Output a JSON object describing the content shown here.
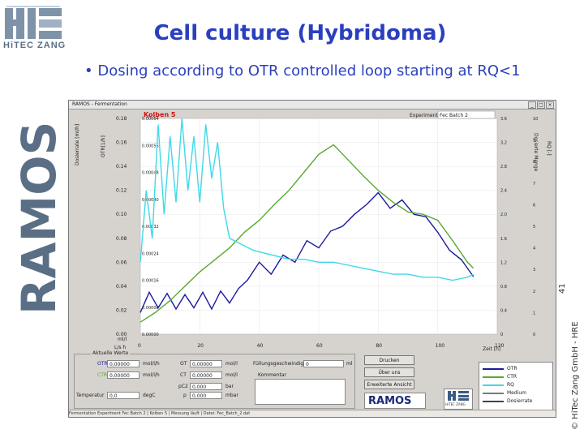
{
  "slide": {
    "logo_text": "HiTEC ZANG",
    "title": "Cell culture (Hybridoma)",
    "bullet": "• Dosing according to OTR controlled loop starting at RQ<1",
    "vertical_logo": "RAMOS",
    "slide_number": "41",
    "copyright": "© HiTec Zang GmbH - HRE"
  },
  "app": {
    "window_title": "RAMOS - Fermentation",
    "flask_label": "Kolben 5",
    "experiment_label": "Experiment:",
    "experiment_value": "Fec Batch 2",
    "y_left_title": "OTR[1/h]",
    "y_left2_title": "Dosierrate [ml/h]",
    "y_right_title": "RQ [-]",
    "y_right2_title": "Dosierte Menge",
    "x_title": "Zeit [h]",
    "x_unit_left": "ml/l",
    "x_unit_left2": "L/s h",
    "buttons": {
      "print": "Drucken",
      "about": "Über uns",
      "extended": "Erweiterte Ansicht"
    },
    "panel_caption": "Aktuelle Werte",
    "current": {
      "otr_label": "OTR",
      "otr_value": "0,00000",
      "otr_unit": "mol/l/h",
      "ctr_label": "CTR",
      "ctr_value": "0,00000",
      "ctr_unit": "mol/l/h",
      "temp_label": "Temperatur",
      "temp_value": "0,0",
      "temp_unit": "degC",
      "ot_label": "OT",
      "ot_value": "0,00000",
      "ot_unit": "mol/l",
      "ct_label": "CT",
      "ct_value": "0,00000",
      "ct_unit": "mol/l",
      "pc_label": "pC2",
      "pc_value": "0,000",
      "pc_unit": "bar",
      "p_label": "p",
      "p_value": "0,000",
      "p_unit": "mbar",
      "flow_label": "Füllungsgeschwindigkeit",
      "flow_value": "0",
      "flow_unit": "ml",
      "comment_label": "Kommentar"
    },
    "legend": [
      {
        "name": "OTR",
        "color": "#1a1aa0"
      },
      {
        "name": "CTR",
        "color": "#5aa832"
      },
      {
        "name": "RQ",
        "color": "#40d8e8"
      },
      {
        "name": "Medium",
        "color": "#7a7a7a"
      },
      {
        "name": "Dosierrate",
        "color": "#444444"
      }
    ],
    "ramos_mini": "RAMOS",
    "hitec_mini": "HiTEC ZANG",
    "status": "Fermentation Experiment Fec Batch 2 | Kolben 5 | Messung läuft | Datei: Fec_Batch_2.dat"
  },
  "chart_data": {
    "type": "line",
    "xlabel": "Zeit [h]",
    "xlim": [
      0,
      120
    ],
    "x_ticks": [
      "0",
      "20",
      "40",
      "60",
      "80",
      "100",
      "120"
    ],
    "ylim_left": [
      0,
      0.18
    ],
    "y_ticks_left": [
      "0.00",
      "0.02",
      "0.04",
      "0.06",
      "0.08",
      "0.10",
      "0.12",
      "0.14",
      "0.16",
      "0.18"
    ],
    "y_ticks_left2": [
      "0.00000",
      "0.00008",
      "0.00016",
      "0.00024",
      "0.00032",
      "0.00040",
      "0.00048",
      "0.00056",
      "0.00064"
    ],
    "y_ticks_right": [
      "0",
      "0.4",
      "0.8",
      "1.2",
      "1.6",
      "2.0",
      "2.4",
      "2.8",
      "3.2",
      "3.6"
    ],
    "y_ticks_right2": [
      "0",
      "1",
      "2",
      "3",
      "4",
      "5",
      "6",
      "7",
      "8",
      "9",
      "10"
    ],
    "series": [
      {
        "name": "OTR",
        "color": "#1a1aa0",
        "x": [
          0,
          3,
          6,
          9,
          12,
          15,
          18,
          21,
          24,
          27,
          30,
          33,
          36,
          40,
          44,
          48,
          52,
          56,
          60,
          64,
          68,
          72,
          76,
          80,
          84,
          88,
          92,
          96,
          100,
          104,
          108,
          112
        ],
        "y": [
          0.018,
          0.035,
          0.022,
          0.034,
          0.021,
          0.033,
          0.022,
          0.035,
          0.021,
          0.036,
          0.026,
          0.038,
          0.045,
          0.06,
          0.05,
          0.066,
          0.06,
          0.078,
          0.072,
          0.086,
          0.09,
          0.1,
          0.108,
          0.118,
          0.105,
          0.112,
          0.1,
          0.098,
          0.085,
          0.07,
          0.062,
          0.048
        ]
      },
      {
        "name": "CTR",
        "color": "#5aa832",
        "x": [
          0,
          5,
          10,
          15,
          20,
          25,
          30,
          35,
          40,
          45,
          50,
          55,
          60,
          65,
          70,
          75,
          80,
          85,
          90,
          95,
          100,
          105,
          110,
          112
        ],
        "y": [
          0.01,
          0.018,
          0.028,
          0.04,
          0.052,
          0.062,
          0.072,
          0.085,
          0.095,
          0.108,
          0.12,
          0.135,
          0.15,
          0.158,
          0.145,
          0.132,
          0.12,
          0.11,
          0.102,
          0.1,
          0.095,
          0.078,
          0.06,
          0.055
        ]
      },
      {
        "name": "RQ",
        "color": "#40d8e8",
        "x": [
          0,
          2,
          4,
          6,
          8,
          10,
          12,
          14,
          16,
          18,
          20,
          22,
          24,
          26,
          28,
          30,
          34,
          38,
          42,
          46,
          50,
          55,
          60,
          65,
          70,
          75,
          80,
          85,
          90,
          95,
          100,
          105,
          110,
          112
        ],
        "y": [
          1.2,
          2.4,
          1.6,
          3.5,
          2.0,
          3.3,
          2.2,
          3.6,
          2.4,
          3.3,
          2.2,
          3.5,
          2.6,
          3.2,
          2.1,
          1.6,
          1.5,
          1.4,
          1.35,
          1.3,
          1.25,
          1.25,
          1.2,
          1.2,
          1.15,
          1.1,
          1.05,
          1.0,
          1.0,
          0.95,
          0.95,
          0.9,
          0.95,
          1.0
        ]
      }
    ]
  }
}
